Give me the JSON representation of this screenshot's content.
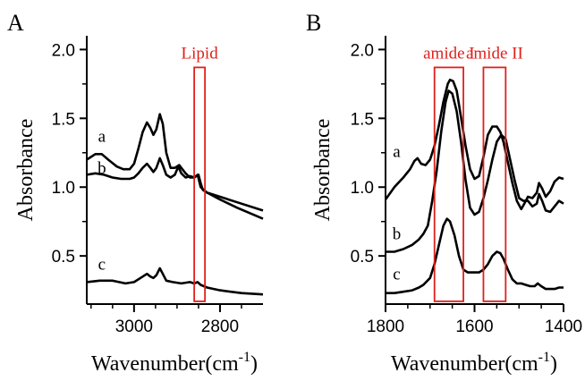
{
  "chart_data": [
    {
      "type": "line",
      "panel_label": "A",
      "xlabel": "Wavenumber(cm",
      "xlabel_sup": "-1",
      "xlabel_close": ")",
      "ylabel": "Absorbance",
      "xlim": [
        3110,
        2700
      ],
      "ylim": [
        0.15,
        2.1
      ],
      "x_reversed": true,
      "x_ticks": [
        3000,
        2800
      ],
      "x_minor_ticks": [
        3100,
        3050,
        2950,
        2900,
        2850,
        2750
      ],
      "y_ticks": [
        "0.5",
        "1.0",
        "1.5",
        "2.0"
      ],
      "y_minor_ticks": [
        0.75,
        1.25,
        1.75
      ],
      "grid": false,
      "annotations": [
        {
          "text": "Lipid",
          "color": "#e0201c",
          "x_from": 2860,
          "x_to": 2835,
          "y_from": 0.17,
          "y_to": 1.87
        }
      ],
      "series": [
        {
          "name": "a",
          "label_x": 3075,
          "label_y": 1.33,
          "points": [
            [
              3110,
              1.2
            ],
            [
              3090,
              1.24
            ],
            [
              3075,
              1.24
            ],
            [
              3060,
              1.2
            ],
            [
              3040,
              1.15
            ],
            [
              3025,
              1.13
            ],
            [
              3010,
              1.13
            ],
            [
              3000,
              1.17
            ],
            [
              2990,
              1.28
            ],
            [
              2980,
              1.4
            ],
            [
              2970,
              1.47
            ],
            [
              2962,
              1.43
            ],
            [
              2955,
              1.38
            ],
            [
              2948,
              1.42
            ],
            [
              2940,
              1.53
            ],
            [
              2933,
              1.46
            ],
            [
              2925,
              1.25
            ],
            [
              2915,
              1.14
            ],
            [
              2905,
              1.14
            ],
            [
              2895,
              1.16
            ],
            [
              2890,
              1.14
            ],
            [
              2880,
              1.1
            ],
            [
              2870,
              1.07
            ],
            [
              2860,
              1.07
            ],
            [
              2850,
              1.09
            ],
            [
              2845,
              1.03
            ],
            [
              2840,
              0.98
            ],
            [
              2830,
              0.96
            ],
            [
              2800,
              0.93
            ],
            [
              2760,
              0.89
            ],
            [
              2700,
              0.83
            ]
          ]
        },
        {
          "name": "b",
          "label_x": 3075,
          "label_y": 1.1,
          "points": [
            [
              3110,
              1.09
            ],
            [
              3090,
              1.1
            ],
            [
              3070,
              1.09
            ],
            [
              3050,
              1.07
            ],
            [
              3030,
              1.06
            ],
            [
              3010,
              1.06
            ],
            [
              3000,
              1.07
            ],
            [
              2990,
              1.1
            ],
            [
              2980,
              1.14
            ],
            [
              2970,
              1.17
            ],
            [
              2962,
              1.14
            ],
            [
              2955,
              1.11
            ],
            [
              2948,
              1.14
            ],
            [
              2940,
              1.21
            ],
            [
              2933,
              1.16
            ],
            [
              2925,
              1.09
            ],
            [
              2915,
              1.07
            ],
            [
              2905,
              1.09
            ],
            [
              2897,
              1.15
            ],
            [
              2890,
              1.1
            ],
            [
              2880,
              1.07
            ],
            [
              2870,
              1.08
            ],
            [
              2860,
              1.07
            ],
            [
              2852,
              1.09
            ],
            [
              2845,
              1.0
            ],
            [
              2838,
              0.98
            ],
            [
              2830,
              0.96
            ],
            [
              2800,
              0.91
            ],
            [
              2760,
              0.85
            ],
            [
              2700,
              0.77
            ]
          ]
        },
        {
          "name": "c",
          "label_x": 3075,
          "label_y": 0.4,
          "points": [
            [
              3110,
              0.31
            ],
            [
              3080,
              0.32
            ],
            [
              3050,
              0.32
            ],
            [
              3020,
              0.3
            ],
            [
              3000,
              0.31
            ],
            [
              2985,
              0.34
            ],
            [
              2970,
              0.37
            ],
            [
              2962,
              0.35
            ],
            [
              2955,
              0.34
            ],
            [
              2948,
              0.36
            ],
            [
              2940,
              0.41
            ],
            [
              2933,
              0.37
            ],
            [
              2925,
              0.32
            ],
            [
              2910,
              0.31
            ],
            [
              2890,
              0.3
            ],
            [
              2870,
              0.31
            ],
            [
              2860,
              0.3
            ],
            [
              2852,
              0.31
            ],
            [
              2845,
              0.29
            ],
            [
              2830,
              0.27
            ],
            [
              2800,
              0.25
            ],
            [
              2750,
              0.23
            ],
            [
              2700,
              0.22
            ]
          ]
        }
      ]
    },
    {
      "type": "line",
      "panel_label": "B",
      "xlabel": "Wavenumber(cm",
      "xlabel_sup": "-1",
      "xlabel_close": ")",
      "ylabel": "Absorbance",
      "xlim": [
        1800,
        1400
      ],
      "ylim": [
        0.15,
        2.1
      ],
      "x_reversed": true,
      "x_ticks": [
        1800,
        1600,
        1400
      ],
      "x_minor_ticks": [
        1750,
        1700,
        1650,
        1550,
        1500,
        1450
      ],
      "y_ticks": [
        "0.5",
        "1.0",
        "1.5",
        "2.0"
      ],
      "y_minor_ticks": [
        0.75,
        1.25,
        1.75
      ],
      "grid": false,
      "annotations": [
        {
          "text": "amide I",
          "color": "#e0201c",
          "x_from": 1690,
          "x_to": 1625,
          "y_from": 0.17,
          "y_to": 1.87
        },
        {
          "text": "amide II",
          "color": "#e0201c",
          "x_from": 1580,
          "x_to": 1530,
          "y_from": 0.17,
          "y_to": 1.87
        }
      ],
      "series": [
        {
          "name": "a",
          "label_x": 1775,
          "label_y": 1.22,
          "points": [
            [
              1800,
              0.91
            ],
            [
              1780,
              1.0
            ],
            [
              1760,
              1.07
            ],
            [
              1745,
              1.13
            ],
            [
              1735,
              1.19
            ],
            [
              1728,
              1.21
            ],
            [
              1720,
              1.17
            ],
            [
              1710,
              1.16
            ],
            [
              1700,
              1.2
            ],
            [
              1690,
              1.3
            ],
            [
              1680,
              1.45
            ],
            [
              1670,
              1.62
            ],
            [
              1660,
              1.75
            ],
            [
              1655,
              1.78
            ],
            [
              1648,
              1.77
            ],
            [
              1640,
              1.7
            ],
            [
              1630,
              1.5
            ],
            [
              1620,
              1.3
            ],
            [
              1610,
              1.13
            ],
            [
              1600,
              1.06
            ],
            [
              1590,
              1.08
            ],
            [
              1580,
              1.22
            ],
            [
              1570,
              1.38
            ],
            [
              1560,
              1.44
            ],
            [
              1550,
              1.44
            ],
            [
              1542,
              1.4
            ],
            [
              1535,
              1.33
            ],
            [
              1525,
              1.18
            ],
            [
              1515,
              1.03
            ],
            [
              1505,
              0.9
            ],
            [
              1495,
              0.84
            ],
            [
              1488,
              0.88
            ],
            [
              1480,
              0.93
            ],
            [
              1470,
              0.92
            ],
            [
              1460,
              0.96
            ],
            [
              1455,
              1.03
            ],
            [
              1448,
              0.99
            ],
            [
              1440,
              0.93
            ],
            [
              1430,
              0.97
            ],
            [
              1420,
              1.04
            ],
            [
              1410,
              1.07
            ],
            [
              1400,
              1.06
            ]
          ]
        },
        {
          "name": "b",
          "label_x": 1775,
          "label_y": 0.62,
          "points": [
            [
              1800,
              0.53
            ],
            [
              1780,
              0.53
            ],
            [
              1760,
              0.55
            ],
            [
              1740,
              0.58
            ],
            [
              1725,
              0.62
            ],
            [
              1715,
              0.66
            ],
            [
              1705,
              0.72
            ],
            [
              1695,
              0.9
            ],
            [
              1685,
              1.12
            ],
            [
              1675,
              1.4
            ],
            [
              1665,
              1.62
            ],
            [
              1658,
              1.7
            ],
            [
              1650,
              1.68
            ],
            [
              1640,
              1.55
            ],
            [
              1630,
              1.32
            ],
            [
              1620,
              1.05
            ],
            [
              1610,
              0.85
            ],
            [
              1600,
              0.8
            ],
            [
              1590,
              0.82
            ],
            [
              1580,
              0.92
            ],
            [
              1570,
              1.05
            ],
            [
              1560,
              1.2
            ],
            [
              1550,
              1.33
            ],
            [
              1540,
              1.38
            ],
            [
              1530,
              1.35
            ],
            [
              1520,
              1.2
            ],
            [
              1510,
              1.05
            ],
            [
              1500,
              0.92
            ],
            [
              1490,
              0.9
            ],
            [
              1480,
              0.9
            ],
            [
              1470,
              0.86
            ],
            [
              1460,
              0.88
            ],
            [
              1455,
              0.95
            ],
            [
              1448,
              0.9
            ],
            [
              1440,
              0.83
            ],
            [
              1430,
              0.82
            ],
            [
              1420,
              0.86
            ],
            [
              1410,
              0.9
            ],
            [
              1400,
              0.88
            ]
          ]
        },
        {
          "name": "c",
          "label_x": 1775,
          "label_y": 0.33,
          "points": [
            [
              1800,
              0.23
            ],
            [
              1780,
              0.23
            ],
            [
              1760,
              0.24
            ],
            [
              1740,
              0.25
            ],
            [
              1725,
              0.27
            ],
            [
              1715,
              0.29
            ],
            [
              1700,
              0.34
            ],
            [
              1690,
              0.44
            ],
            [
              1680,
              0.58
            ],
            [
              1670,
              0.72
            ],
            [
              1662,
              0.77
            ],
            [
              1655,
              0.75
            ],
            [
              1645,
              0.65
            ],
            [
              1635,
              0.5
            ],
            [
              1625,
              0.4
            ],
            [
              1615,
              0.38
            ],
            [
              1600,
              0.38
            ],
            [
              1590,
              0.38
            ],
            [
              1580,
              0.4
            ],
            [
              1570,
              0.44
            ],
            [
              1560,
              0.5
            ],
            [
              1550,
              0.53
            ],
            [
              1542,
              0.52
            ],
            [
              1535,
              0.48
            ],
            [
              1525,
              0.4
            ],
            [
              1515,
              0.33
            ],
            [
              1505,
              0.3
            ],
            [
              1495,
              0.3
            ],
            [
              1485,
              0.29
            ],
            [
              1475,
              0.28
            ],
            [
              1465,
              0.28
            ],
            [
              1458,
              0.3
            ],
            [
              1450,
              0.28
            ],
            [
              1440,
              0.26
            ],
            [
              1430,
              0.26
            ],
            [
              1420,
              0.26
            ],
            [
              1410,
              0.27
            ],
            [
              1400,
              0.27
            ]
          ]
        }
      ]
    }
  ]
}
